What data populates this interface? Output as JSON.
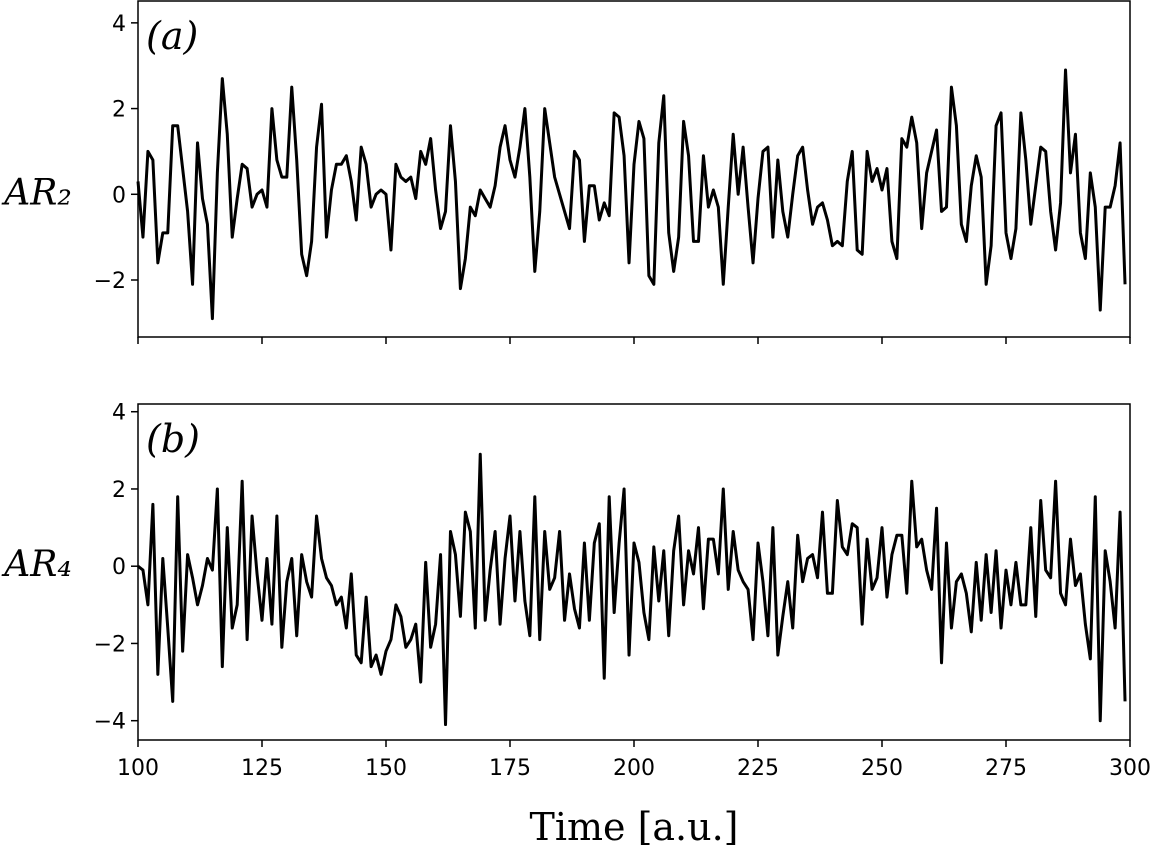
{
  "chart_data": [
    {
      "type": "line",
      "annotation": "(a)",
      "ylabel": "AR₂",
      "x": [
        100,
        101,
        102,
        103,
        104,
        105,
        106,
        107,
        108,
        109,
        110,
        111,
        112,
        113,
        114,
        115,
        116,
        117,
        118,
        119,
        120,
        121,
        122,
        123,
        124,
        125,
        126,
        127,
        128,
        129,
        130,
        131,
        132,
        133,
        134,
        135,
        136,
        137,
        138,
        139,
        140,
        141,
        142,
        143,
        144,
        145,
        146,
        147,
        148,
        149,
        150,
        151,
        152,
        153,
        154,
        155,
        156,
        157,
        158,
        159,
        160,
        161,
        162,
        163,
        164,
        165,
        166,
        167,
        168,
        169,
        170,
        171,
        172,
        173,
        174,
        175,
        176,
        177,
        178,
        179,
        180,
        181,
        182,
        183,
        184,
        185,
        186,
        187,
        188,
        189,
        190,
        191,
        192,
        193,
        194,
        195,
        196,
        197,
        198,
        199,
        200,
        201,
        202,
        203,
        204,
        205,
        206,
        207,
        208,
        209,
        210,
        211,
        212,
        213,
        214,
        215,
        216,
        217,
        218,
        219,
        220,
        221,
        222,
        223,
        224,
        225,
        226,
        227,
        228,
        229,
        230,
        231,
        232,
        233,
        234,
        235,
        236,
        237,
        238,
        239,
        240,
        241,
        242,
        243,
        244,
        245,
        246,
        247,
        248,
        249,
        250,
        251,
        252,
        253,
        254,
        255,
        256,
        257,
        258,
        259,
        260,
        261,
        262,
        263,
        264,
        265,
        266,
        267,
        268,
        269,
        270,
        271,
        272,
        273,
        274,
        275,
        276,
        277,
        278,
        279,
        280,
        281,
        282,
        283,
        284,
        285,
        286,
        287,
        288,
        289,
        290,
        291,
        292,
        293,
        294,
        295,
        296,
        297,
        298,
        299
      ],
      "series": [
        {
          "color": "#000000",
          "values": [
            0.3,
            -1.0,
            1.0,
            0.8,
            -1.6,
            -0.9,
            -0.9,
            1.6,
            1.6,
            0.6,
            -0.4,
            -2.1,
            1.2,
            -0.1,
            -0.7,
            -2.9,
            0.5,
            2.7,
            1.4,
            -1.0,
            -0.1,
            0.7,
            0.6,
            -0.3,
            0.0,
            0.1,
            -0.3,
            2.0,
            0.8,
            0.4,
            0.4,
            2.5,
            0.8,
            -1.4,
            -1.9,
            -1.1,
            1.1,
            2.1,
            -1.0,
            0.1,
            0.7,
            0.7,
            0.9,
            0.3,
            -0.6,
            1.1,
            0.7,
            -0.3,
            0.0,
            0.1,
            0.0,
            -1.3,
            0.7,
            0.4,
            0.3,
            0.4,
            -0.1,
            1.0,
            0.7,
            1.3,
            0.1,
            -0.8,
            -0.4,
            1.6,
            0.3,
            -2.2,
            -1.5,
            -0.3,
            -0.5,
            0.1,
            -0.1,
            -0.3,
            0.2,
            1.1,
            1.6,
            0.8,
            0.4,
            1.1,
            2.0,
            0.4,
            -1.8,
            -0.4,
            2.0,
            1.2,
            0.4,
            0.0,
            -0.4,
            -0.8,
            1.0,
            0.8,
            -1.1,
            0.2,
            0.2,
            -0.6,
            -0.2,
            -0.5,
            1.9,
            1.8,
            0.9,
            -1.6,
            0.7,
            1.7,
            1.3,
            -1.9,
            -2.1,
            1.2,
            2.3,
            -0.9,
            -1.8,
            -1.0,
            1.7,
            0.9,
            -1.1,
            -1.1,
            0.9,
            -0.3,
            0.1,
            -0.3,
            -2.1,
            -0.3,
            1.4,
            0.0,
            1.1,
            -0.3,
            -1.6,
            -0.1,
            1.0,
            1.1,
            -1.0,
            0.8,
            -0.4,
            -1.0,
            0.0,
            0.9,
            1.1,
            0.1,
            -0.7,
            -0.3,
            -0.2,
            -0.6,
            -1.2,
            -1.1,
            -1.2,
            0.3,
            1.0,
            -1.3,
            -1.4,
            1.0,
            0.3,
            0.6,
            0.1,
            0.6,
            -1.1,
            -1.5,
            1.3,
            1.1,
            1.8,
            1.2,
            -0.8,
            0.5,
            1.0,
            1.5,
            -0.4,
            -0.3,
            2.5,
            1.6,
            -0.7,
            -1.1,
            0.2,
            0.9,
            0.4,
            -2.1,
            -1.2,
            1.6,
            1.9,
            -0.9,
            -1.5,
            -0.8,
            1.9,
            0.8,
            -0.7,
            0.2,
            1.1,
            1.0,
            -0.4,
            -1.3,
            -0.2,
            2.9,
            0.5,
            1.4,
            -0.9,
            -1.5,
            0.5,
            -0.3,
            -2.7,
            -0.3,
            -0.3,
            0.2,
            1.2,
            -2.1
          ]
        }
      ],
      "xlim": [
        100,
        300
      ],
      "xticks": [
        100,
        125,
        150,
        175,
        200,
        225,
        250,
        275,
        300
      ],
      "ylim": [
        -3.33,
        4.51
      ],
      "yticks": [
        {
          "value": -2,
          "label": "−2"
        },
        0,
        2,
        4
      ]
    },
    {
      "type": "line",
      "annotation": "(b)",
      "ylabel": "AR₄",
      "xlabel": "Time [a.u.]",
      "x": [
        100,
        101,
        102,
        103,
        104,
        105,
        106,
        107,
        108,
        109,
        110,
        111,
        112,
        113,
        114,
        115,
        116,
        117,
        118,
        119,
        120,
        121,
        122,
        123,
        124,
        125,
        126,
        127,
        128,
        129,
        130,
        131,
        132,
        133,
        134,
        135,
        136,
        137,
        138,
        139,
        140,
        141,
        142,
        143,
        144,
        145,
        146,
        147,
        148,
        149,
        150,
        151,
        152,
        153,
        154,
        155,
        156,
        157,
        158,
        159,
        160,
        161,
        162,
        163,
        164,
        165,
        166,
        167,
        168,
        169,
        170,
        171,
        172,
        173,
        174,
        175,
        176,
        177,
        178,
        179,
        180,
        181,
        182,
        183,
        184,
        185,
        186,
        187,
        188,
        189,
        190,
        191,
        192,
        193,
        194,
        195,
        196,
        197,
        198,
        199,
        200,
        201,
        202,
        203,
        204,
        205,
        206,
        207,
        208,
        209,
        210,
        211,
        212,
        213,
        214,
        215,
        216,
        217,
        218,
        219,
        220,
        221,
        222,
        223,
        224,
        225,
        226,
        227,
        228,
        229,
        230,
        231,
        232,
        233,
        234,
        235,
        236,
        237,
        238,
        239,
        240,
        241,
        242,
        243,
        244,
        245,
        246,
        247,
        248,
        249,
        250,
        251,
        252,
        253,
        254,
        255,
        256,
        257,
        258,
        259,
        260,
        261,
        262,
        263,
        264,
        265,
        266,
        267,
        268,
        269,
        270,
        271,
        272,
        273,
        274,
        275,
        276,
        277,
        278,
        279,
        280,
        281,
        282,
        283,
        284,
        285,
        286,
        287,
        288,
        289,
        290,
        291,
        292,
        293,
        294,
        295,
        296,
        297,
        298,
        299
      ],
      "series": [
        {
          "color": "#000000",
          "values": [
            0.0,
            -0.1,
            -1.0,
            1.6,
            -2.8,
            0.2,
            -1.6,
            -3.5,
            1.8,
            -2.2,
            0.3,
            -0.3,
            -1.0,
            -0.5,
            0.2,
            -0.1,
            2.0,
            -2.6,
            1.0,
            -1.6,
            -1.0,
            2.2,
            -1.9,
            1.3,
            -0.2,
            -1.4,
            0.2,
            -1.5,
            1.3,
            -2.1,
            -0.4,
            0.2,
            -1.8,
            0.3,
            -0.4,
            -0.8,
            1.3,
            0.2,
            -0.3,
            -0.5,
            -1.0,
            -0.8,
            -1.6,
            -0.2,
            -2.3,
            -2.5,
            -0.8,
            -2.6,
            -2.3,
            -2.8,
            -2.2,
            -1.9,
            -1.0,
            -1.3,
            -2.1,
            -1.9,
            -1.5,
            -3.0,
            0.1,
            -2.1,
            -1.5,
            0.3,
            -4.1,
            0.9,
            0.3,
            -1.3,
            1.4,
            0.9,
            -1.6,
            2.9,
            -1.4,
            -0.1,
            0.9,
            -1.5,
            0.2,
            1.3,
            -0.9,
            0.9,
            -0.9,
            -1.8,
            1.8,
            -1.9,
            0.9,
            -0.6,
            -0.3,
            0.9,
            -1.4,
            -0.2,
            -1.1,
            -1.6,
            0.6,
            -1.4,
            0.6,
            1.1,
            -2.9,
            1.8,
            -1.2,
            0.6,
            2.0,
            -2.3,
            0.6,
            0.1,
            -1.2,
            -1.9,
            0.5,
            -0.9,
            0.4,
            -1.8,
            0.4,
            1.3,
            -1.0,
            0.4,
            -0.2,
            1.0,
            -1.1,
            0.7,
            0.7,
            -0.2,
            2.0,
            -0.6,
            0.9,
            -0.1,
            -0.4,
            -0.6,
            -1.9,
            0.6,
            -0.4,
            -1.8,
            1.0,
            -2.3,
            -1.3,
            -0.4,
            -1.6,
            0.8,
            -0.4,
            0.2,
            0.3,
            -0.3,
            1.4,
            -0.7,
            -0.7,
            1.7,
            0.5,
            0.3,
            1.1,
            1.0,
            -1.5,
            0.7,
            -0.6,
            -0.3,
            1.0,
            -0.8,
            0.3,
            0.8,
            0.8,
            -0.7,
            2.2,
            0.5,
            0.7,
            -0.1,
            -0.6,
            1.5,
            -2.5,
            0.6,
            -1.6,
            -0.4,
            -0.2,
            -0.7,
            -1.7,
            0.1,
            -1.4,
            0.3,
            -1.2,
            0.4,
            -1.6,
            -0.1,
            -1.0,
            0.1,
            -1.0,
            -1.0,
            1.0,
            -1.3,
            1.7,
            -0.1,
            -0.3,
            2.2,
            -0.7,
            -1.0,
            0.7,
            -0.5,
            -0.2,
            -1.5,
            -2.4,
            1.8,
            -4.0,
            0.4,
            -0.4,
            -1.6,
            1.4,
            -3.5
          ]
        }
      ],
      "xlim": [
        100,
        300
      ],
      "xticks": [
        100,
        125,
        150,
        175,
        200,
        225,
        250,
        275,
        300
      ],
      "ylim": [
        -4.5,
        4.2
      ],
      "yticks": [
        {
          "value": -4,
          "label": "−4"
        },
        {
          "value": -2,
          "label": "−2"
        },
        0,
        2,
        4
      ]
    }
  ]
}
